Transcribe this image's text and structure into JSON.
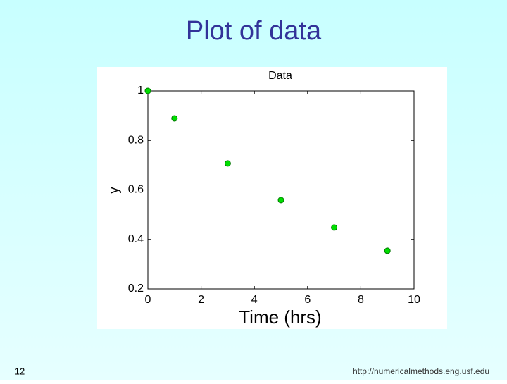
{
  "slide": {
    "title": "Plot of data",
    "page_number": "12",
    "footer": "http://numericalmethods.eng.usf.edu"
  },
  "chart_data": {
    "type": "scatter",
    "title": "Data",
    "x_label": "Time (hrs)",
    "y_label": "y",
    "x": [
      0,
      1,
      3,
      5,
      7,
      9
    ],
    "values": [
      1.0,
      0.889,
      0.707,
      0.559,
      0.448,
      0.354
    ],
    "color": "#00dd00",
    "xlim": [
      0,
      10
    ],
    "xticks": [
      0,
      2,
      4,
      6,
      8,
      10
    ],
    "ylim": [
      0.2,
      1
    ],
    "yticks": [
      0.2,
      0.4,
      0.6,
      0.8,
      1
    ],
    "grid": false
  }
}
